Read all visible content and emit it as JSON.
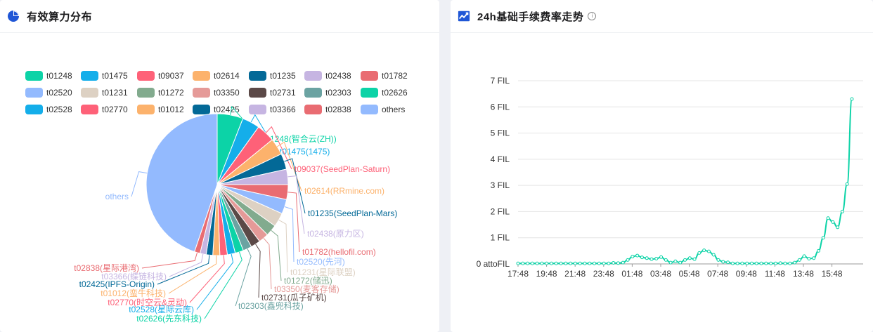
{
  "left_panel": {
    "title": "有效算力分布",
    "icon": "pie-chart-icon"
  },
  "right_panel": {
    "title": "24h基础手续费率走势",
    "icon": "line-chart-icon",
    "info_icon": "info-icon",
    "info_glyph": "i"
  },
  "chart_data": [
    {
      "type": "pie",
      "legend": [
        {
          "name": "t01248",
          "color": "#0cd3a7"
        },
        {
          "name": "t01475",
          "color": "#14aeea"
        },
        {
          "name": "t09037",
          "color": "#fe6178"
        },
        {
          "name": "t02614",
          "color": "#fcb26c"
        },
        {
          "name": "t01235",
          "color": "#036997"
        },
        {
          "name": "t02438",
          "color": "#c6b5e2"
        },
        {
          "name": "t01782",
          "color": "#e96c72"
        },
        {
          "name": "t02520",
          "color": "#93bafe"
        },
        {
          "name": "t01231",
          "color": "#ddd1c3"
        },
        {
          "name": "t01272",
          "color": "#82ab8e"
        },
        {
          "name": "t03350",
          "color": "#e59a98"
        },
        {
          "name": "t02731",
          "color": "#5b4947"
        },
        {
          "name": "t02303",
          "color": "#6ba3a2"
        },
        {
          "name": "t02626",
          "color": "#0cd3a7"
        },
        {
          "name": "t02528",
          "color": "#14aeea"
        },
        {
          "name": "t02770",
          "color": "#fe6178"
        },
        {
          "name": "t01012",
          "color": "#fcb26c"
        },
        {
          "name": "t02425",
          "color": "#036997"
        },
        {
          "name": "t03366",
          "color": "#c6b5e2"
        },
        {
          "name": "t02838",
          "color": "#e96c72"
        },
        {
          "name": "others",
          "color": "#93bafe"
        }
      ],
      "slices": [
        {
          "name": "t01248",
          "label": "t01248(智合云(ZH))",
          "value": 5.9,
          "color": "#0cd3a7"
        },
        {
          "name": "t01475",
          "label": "t01475(1475)",
          "value": 4.0,
          "color": "#14aeea"
        },
        {
          "name": "t09037",
          "label": "t09037(SeedPlan-Saturn)",
          "value": 4.2,
          "color": "#fe6178"
        },
        {
          "name": "t02614",
          "label": "t02614(RRmine.com)",
          "value": 3.8,
          "color": "#fcb26c"
        },
        {
          "name": "t01235",
          "label": "t01235(SeedPlan-Mars)",
          "value": 3.6,
          "color": "#036997"
        },
        {
          "name": "t02438",
          "label": "t02438(原力区)",
          "value": 3.5,
          "color": "#c6b5e2"
        },
        {
          "name": "t01782",
          "label": "t01782(hellofil.com)",
          "value": 3.4,
          "color": "#e96c72"
        },
        {
          "name": "t02520",
          "label": "t02520(先河)",
          "value": 3.3,
          "color": "#93bafe"
        },
        {
          "name": "t01231",
          "label": "t01231(星际联盟)",
          "value": 3.2,
          "color": "#ddd1c3"
        },
        {
          "name": "t01272",
          "label": "t01272(储迅)",
          "value": 2.6,
          "color": "#82ab8e"
        },
        {
          "name": "t03350",
          "label": "t03350(麦客存储)",
          "value": 2.3,
          "color": "#e59a98"
        },
        {
          "name": "t02731",
          "label": "t02731(瓜子矿机)",
          "value": 2.2,
          "color": "#5b4947"
        },
        {
          "name": "t02303",
          "label": "t02303(鑫兜科技)",
          "value": 2.0,
          "color": "#6ba3a2"
        },
        {
          "name": "t02626",
          "label": "t02626(先东科技)",
          "value": 1.9,
          "color": "#0cd3a7"
        },
        {
          "name": "t02528",
          "label": "t02528(星际云库)",
          "value": 1.8,
          "color": "#14aeea"
        },
        {
          "name": "t02770",
          "label": "t02770(时空云&灵动)",
          "value": 1.7,
          "color": "#fe6178"
        },
        {
          "name": "t01012",
          "label": "t01012(蛮牛科技)",
          "value": 1.6,
          "color": "#fcb26c"
        },
        {
          "name": "t02425",
          "label": "t02425(IPFS-Origin)",
          "value": 1.5,
          "color": "#036997"
        },
        {
          "name": "t03366",
          "label": "t03366(蝶链科技)",
          "value": 1.4,
          "color": "#c6b5e2"
        },
        {
          "name": "t02838",
          "label": "t02838(星际港湾)",
          "value": 1.3,
          "color": "#e96c72"
        },
        {
          "name": "others",
          "label": "others",
          "value": 44.8,
          "color": "#93bafe"
        }
      ]
    },
    {
      "type": "line",
      "x_ticks": [
        "17:48",
        "19:48",
        "21:48",
        "23:48",
        "01:48",
        "03:48",
        "05:48",
        "07:48",
        "09:48",
        "11:48",
        "13:48",
        "15:48"
      ],
      "y_ticks": [
        "0 attoFIL",
        "1 FIL",
        "2 FIL",
        "3 FIL",
        "4 FIL",
        "5 FIL",
        "6 FIL",
        "7 FIL"
      ],
      "ylim": [
        0,
        7
      ],
      "grid": true,
      "color": "#0cd3a7",
      "y_values": [
        0.02,
        0.02,
        0.02,
        0.02,
        0.02,
        0.02,
        0.02,
        0.02,
        0.02,
        0.02,
        0.02,
        0.02,
        0.02,
        0.02,
        0.02,
        0.02,
        0.02,
        0.02,
        0.02,
        0.02,
        0.04,
        0.03,
        0.05,
        0.15,
        0.28,
        0.32,
        0.25,
        0.22,
        0.18,
        0.2,
        0.26,
        0.15,
        0.05,
        0.1,
        0.05,
        0.15,
        0.22,
        0.18,
        0.42,
        0.52,
        0.48,
        0.35,
        0.15,
        0.08,
        0.06,
        0.02,
        0.02,
        0.02,
        0.02,
        0.02,
        0.02,
        0.02,
        0.02,
        0.02,
        0.02,
        0.03,
        0.02,
        0.02,
        0.05,
        0.15,
        0.3,
        0.2,
        0.22,
        0.5,
        1.0,
        1.75,
        1.6,
        1.4,
        2.0,
        3.05,
        6.3
      ]
    }
  ]
}
